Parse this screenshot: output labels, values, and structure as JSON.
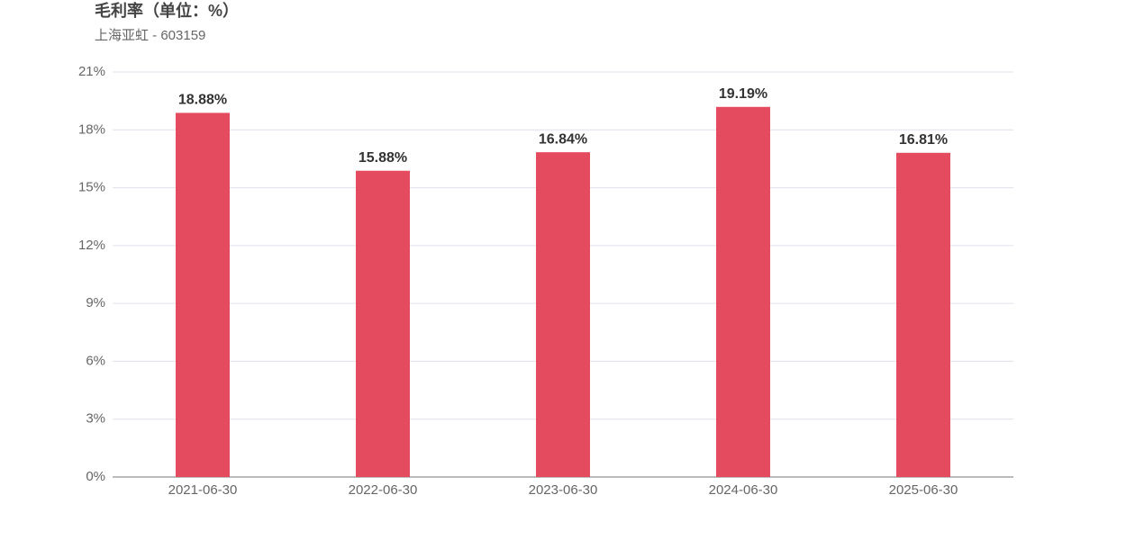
{
  "chart_data": {
    "type": "bar",
    "title": "毛利率（单位：%）",
    "subtitle": "上海亚虹 - 603159",
    "categories": [
      "2021-06-30",
      "2022-06-30",
      "2023-06-30",
      "2024-06-30",
      "2025-06-30"
    ],
    "values": [
      18.88,
      15.88,
      16.84,
      19.19,
      16.81
    ],
    "value_labels": [
      "18.88%",
      "15.88%",
      "16.84%",
      "19.19%",
      "16.81%"
    ],
    "color": "#e54b5e",
    "ylim": [
      0,
      21
    ],
    "yticks": [
      {
        "value": 0,
        "label": "0%"
      },
      {
        "value": 3,
        "label": "3%"
      },
      {
        "value": 6,
        "label": "6%"
      },
      {
        "value": 9,
        "label": "9%"
      },
      {
        "value": 12,
        "label": "12%"
      },
      {
        "value": 15,
        "label": "15%"
      },
      {
        "value": 18,
        "label": "18%"
      },
      {
        "value": 21,
        "label": "21%"
      }
    ],
    "grid": true
  }
}
